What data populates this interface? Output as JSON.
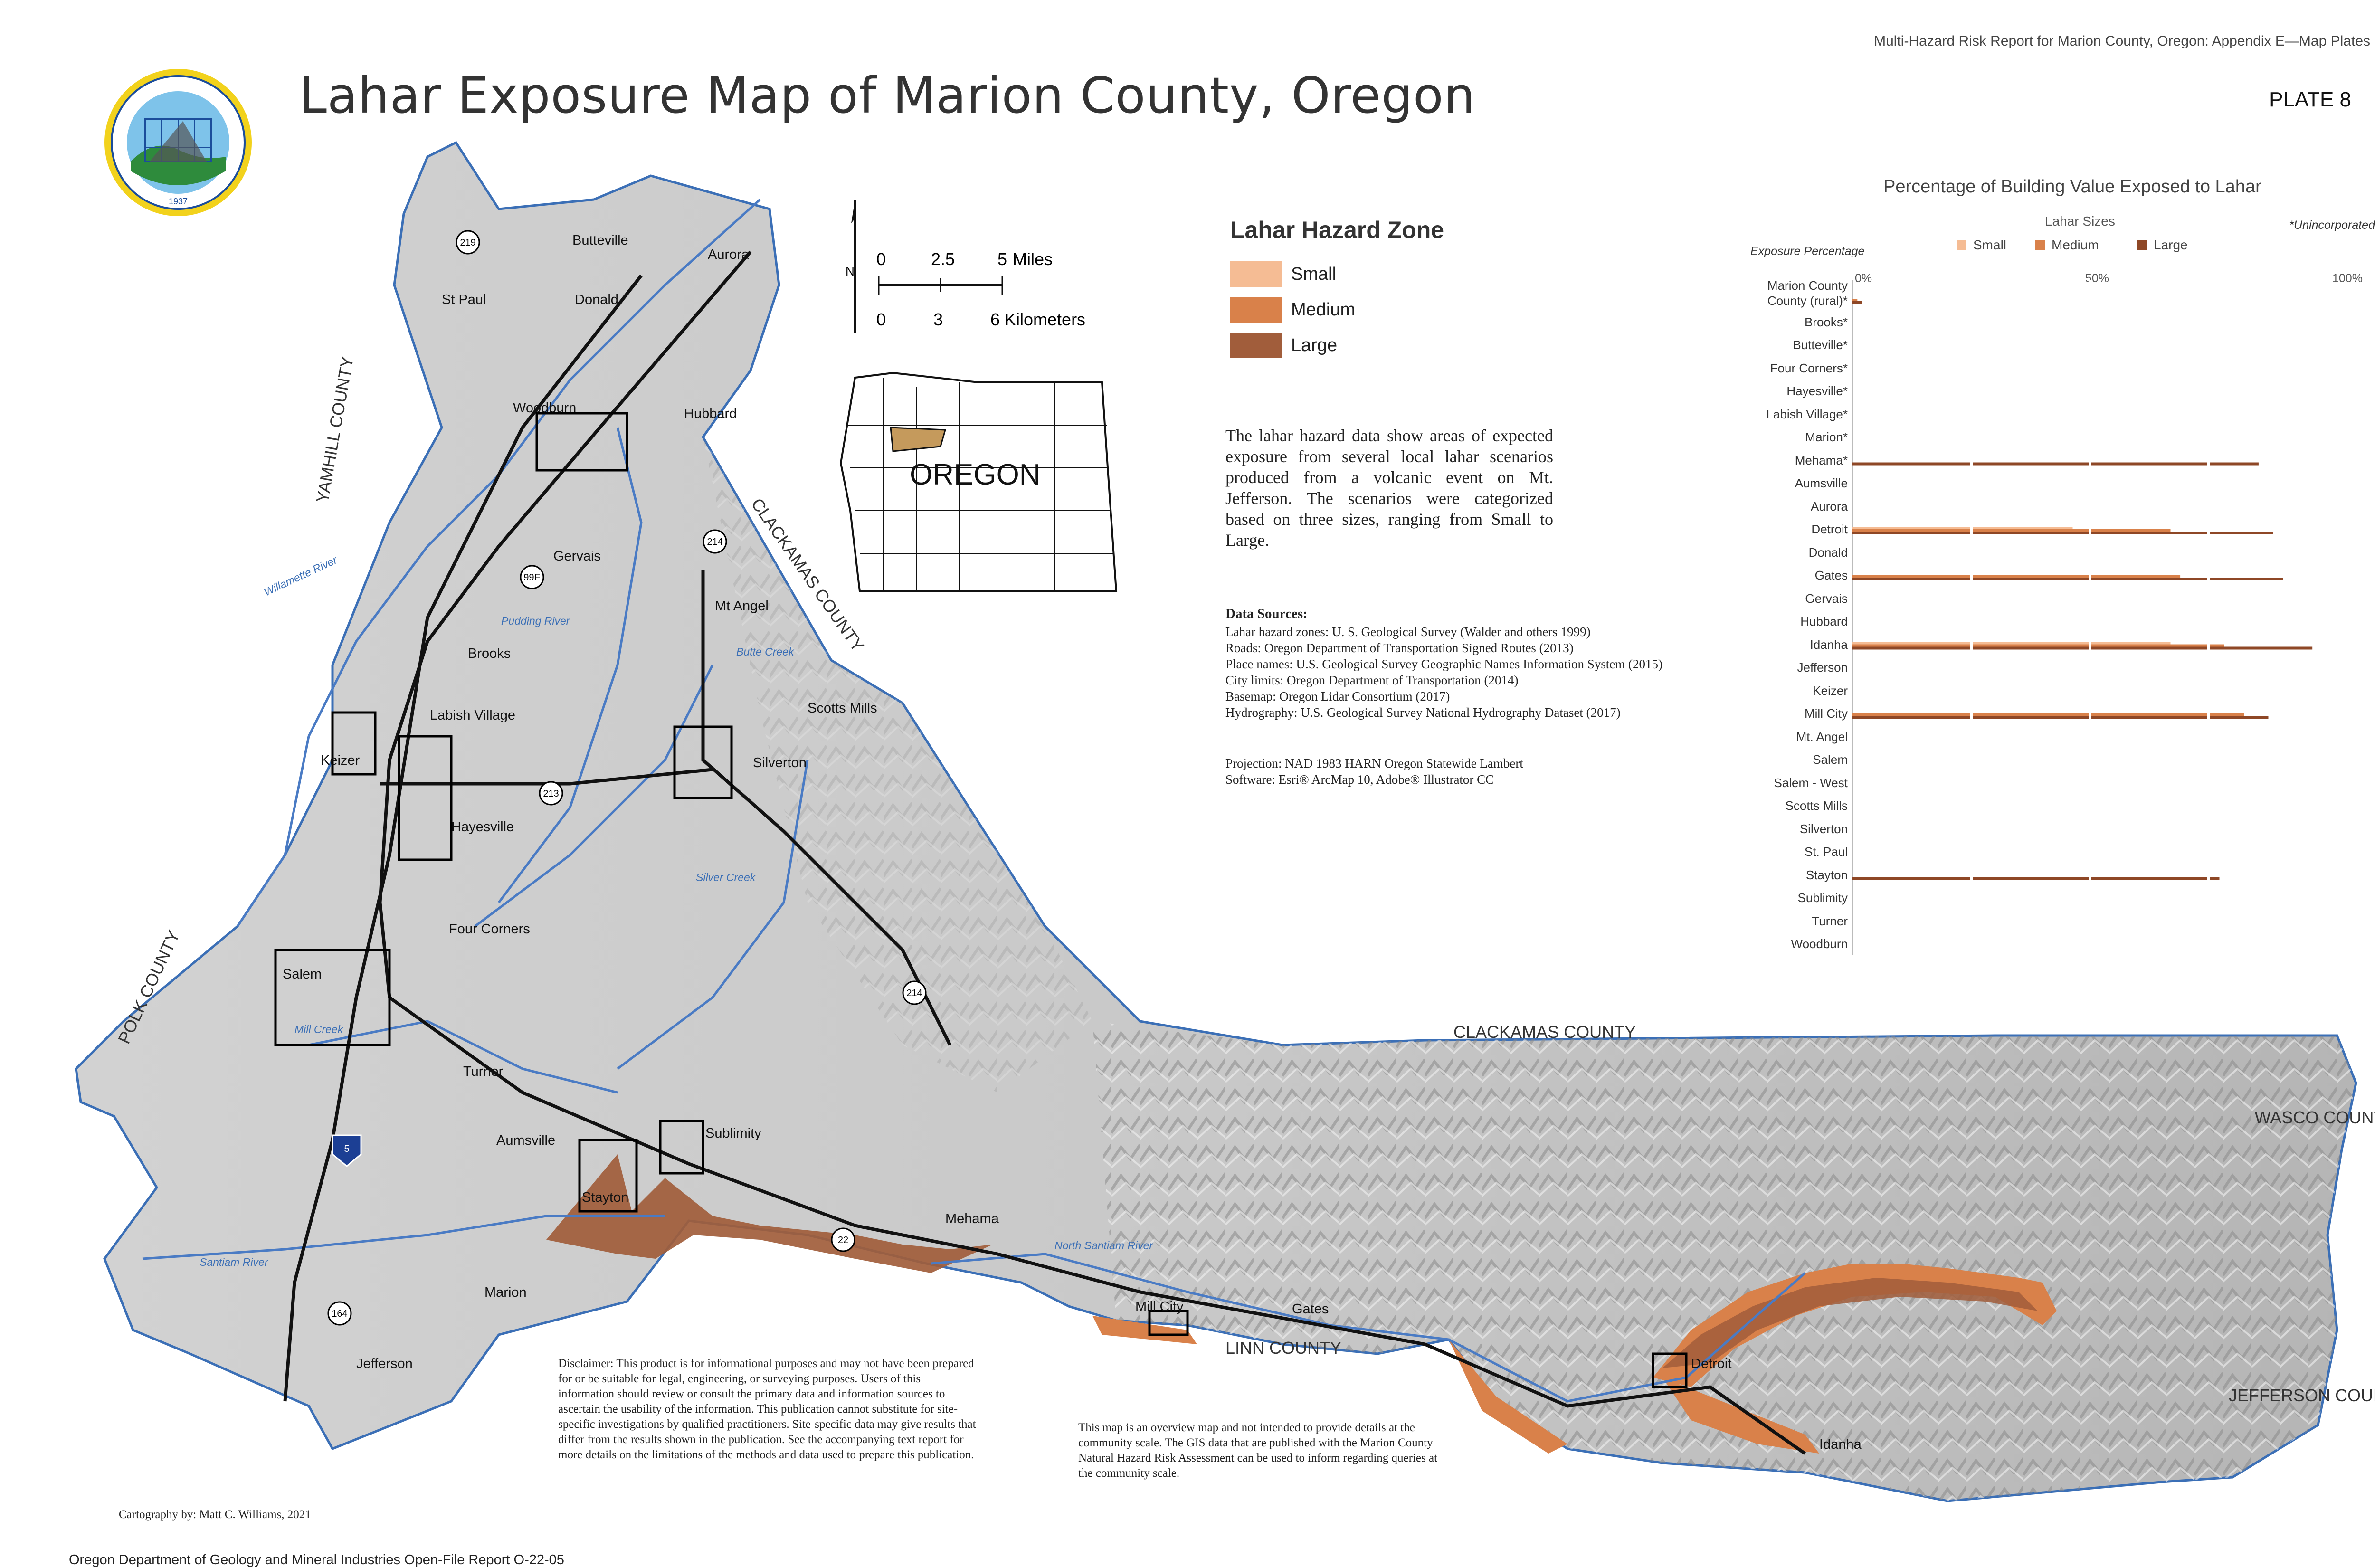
{
  "header": {
    "top_right": "Multi-Hazard Risk Report for Marion County, Oregon: Appendix E—Map Plates",
    "plate": "PLATE 8",
    "title": "Lahar Exposure Map of Marion County, Oregon"
  },
  "seal": {
    "text": "OREGON DEPARTMENT OF GEOLOGY AND MINERAL INDUSTRIES",
    "year": "1937"
  },
  "legend": {
    "title": "Lahar Hazard Zone",
    "items": [
      {
        "label": "Small",
        "color": "#f5bc94"
      },
      {
        "label": "Medium",
        "color": "#d9814a"
      },
      {
        "label": "Large",
        "color": "#a15d3b"
      }
    ]
  },
  "scalebar": {
    "miles_ticks": [
      "0",
      "2.5",
      "5"
    ],
    "miles_unit": "Miles",
    "km_ticks": [
      "0",
      "3",
      "6"
    ],
    "km_unit": "Kilometers",
    "north": "N"
  },
  "inset": {
    "label": "OREGON"
  },
  "description": "The lahar hazard data show areas of expected exposure from several local lahar scenarios produced from a volcanic event on Mt. Jefferson. The scenarios were categorized based on three sizes, ranging from Small to Large.",
  "data_sources": {
    "heading": "Data Sources:",
    "lines": [
      "Lahar hazard zones: U. S. Geological Survey (Walder and others 1999)",
      "Roads: Oregon Department of Transportation Signed Routes (2013)",
      "Place names: U.S. Geological Survey Geographic Names Information System (2015)",
      "City limits: Oregon Department of Transportation (2014)",
      "Basemap: Oregon Lidar Consortium (2017)",
      "Hydrography: U.S. Geological Survey National Hydrography Dataset (2017)"
    ]
  },
  "projection": {
    "lines": [
      "Projection: NAD 1983 HARN Oregon Statewide Lambert",
      "Software: Esri® ArcMap 10, Adobe® Illustrator CC"
    ]
  },
  "disclaimer": "Disclaimer: This product is for informational purposes and may not have been prepared for or be suitable for legal, engineering, or surveying purposes. Users of this information should review or consult the primary data and information sources to ascertain the usability of the information. This publication cannot substitute for site-specific investigations by qualified practitioners. Site-specific data may give results that differ from the results shown in the publication. See the accompanying text report for more details on the limitations of the methods and data used to prepare this publication.",
  "overview_note": "This map is an overview map and not intended to provide details at the community scale. The GIS data that are published with the Marion County Natural Hazard Risk Assessment can be used to inform regarding queries at the community scale.",
  "cartography": "Cartography by: Matt C. Williams, 2021",
  "footer": "Oregon Department of Geology and Mineral Industries Open-File Report O-22-05",
  "map_labels": {
    "counties": [
      "YAMHILL COUNTY",
      "CLACKAMAS COUNTY",
      "POLK COUNTY",
      "CLACKAMAS COUNTY",
      "LINN COUNTY",
      "WASCO COUNTY",
      "JEFFERSON COUNTY"
    ],
    "places": [
      "Butteville",
      "Aurora",
      "St Paul",
      "Donald",
      "Woodburn",
      "Hubbard",
      "Gervais",
      "Mt Angel",
      "Brooks",
      "Scotts Mills",
      "Labish Village",
      "Silverton",
      "Keizer",
      "Hayesville",
      "Four Corners",
      "Salem",
      "Turner",
      "Sublimity",
      "Aumsville",
      "Stayton",
      "Mehama",
      "Marion",
      "Jefferson",
      "Mill City",
      "Gates",
      "Detroit",
      "Idanha"
    ],
    "rivers": [
      "Willamette River",
      "Pudding River",
      "Butte Creek",
      "Silver Creek",
      "Mill Creek",
      "Santiam River",
      "North Santiam River"
    ],
    "routes": [
      "219",
      "214",
      "99E",
      "213",
      "214",
      "5",
      "22",
      "164"
    ]
  },
  "chart_data": {
    "type": "bar",
    "title": "Percentage of Building Value Exposed to Lahar",
    "legend_title": "Lahar Sizes",
    "xlabel": "Exposure Percentage",
    "note": "*Unincorporated",
    "xlim": [
      0,
      100
    ],
    "ticks": [
      "0%",
      "50%",
      "100%"
    ],
    "categories": [
      "Marion County County (rural)*",
      "Brooks*",
      "Butteville*",
      "Four Corners*",
      "Hayesville*",
      "Labish Village*",
      "Marion*",
      "Mehama*",
      "Aumsville",
      "Aurora",
      "Detroit",
      "Donald",
      "Gates",
      "Gervais",
      "Hubbard",
      "Idanha",
      "Jefferson",
      "Keizer",
      "Mill City",
      "Mt. Angel",
      "Salem",
      "Salem - West",
      "Scotts Mills",
      "Silverton",
      "St. Paul",
      "Stayton",
      "Sublimity",
      "Turner",
      "Woodburn"
    ],
    "series": [
      {
        "name": "Small",
        "color": "#f5bc94",
        "values": [
          0,
          0,
          0,
          0,
          0,
          0,
          0,
          0,
          0,
          0,
          45,
          0,
          0,
          0,
          0,
          65,
          0,
          0,
          0,
          0,
          0,
          0,
          0,
          0,
          0,
          0,
          0,
          0,
          0
        ]
      },
      {
        "name": "Medium",
        "color": "#d9814a",
        "values": [
          1,
          0,
          0,
          0,
          0,
          0,
          0,
          0,
          0,
          0,
          65,
          0,
          67,
          0,
          0,
          76,
          0,
          0,
          80,
          0,
          0,
          0,
          0,
          0,
          0,
          0,
          0,
          0,
          0
        ]
      },
      {
        "name": "Large",
        "color": "#8e4726",
        "values": [
          2,
          0,
          0,
          0,
          0,
          0,
          0,
          83,
          0,
          0,
          86,
          0,
          88,
          0,
          0,
          94,
          0,
          0,
          85,
          0,
          0,
          0,
          0,
          0,
          0,
          75,
          0,
          0,
          0
        ]
      }
    ]
  }
}
